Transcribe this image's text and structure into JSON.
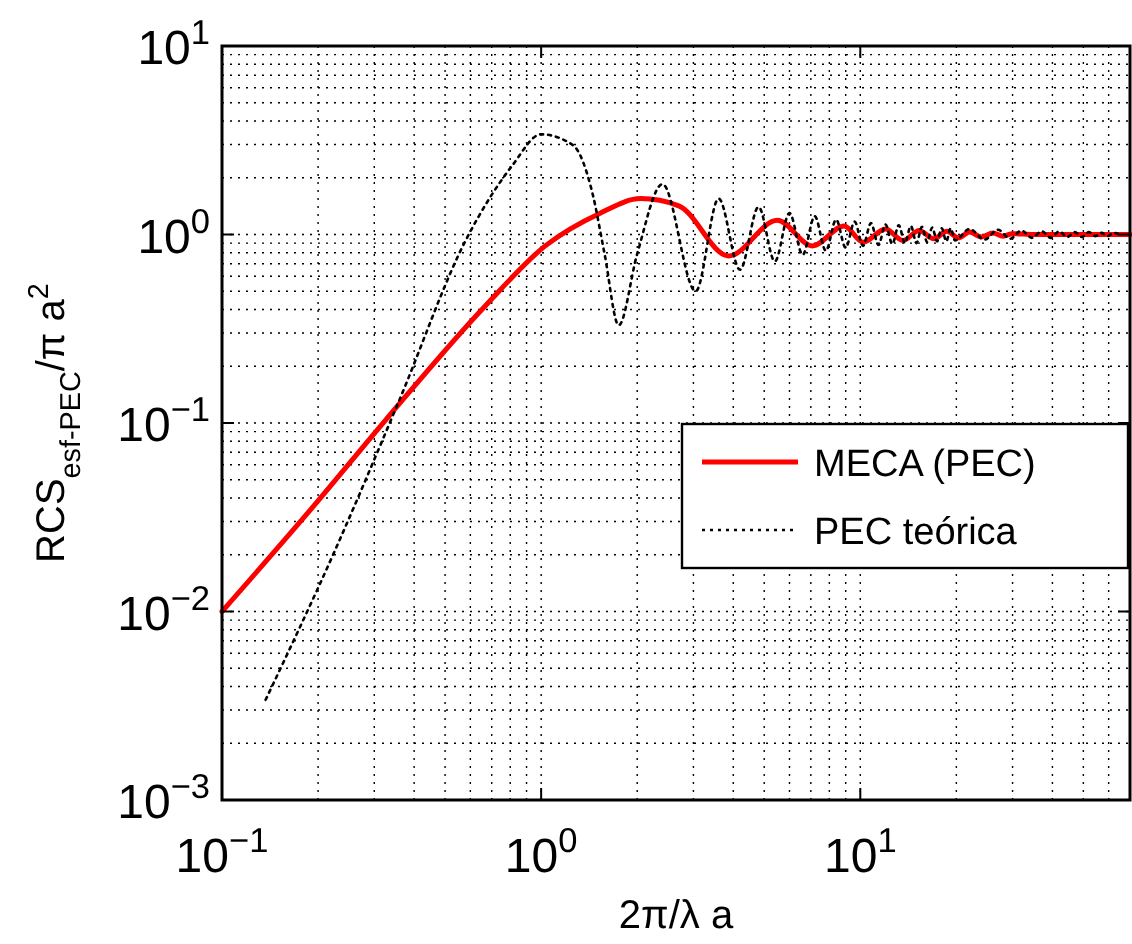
{
  "chart_data": {
    "type": "line",
    "xlabel": "2π/λ a",
    "ylabel": "RCS$_{esf-PEC}$/π a$^{2}$",
    "log": "xy",
    "grid": true,
    "legend": "right",
    "xlim": [
      0.1,
      70
    ],
    "ylim": [
      0.001,
      10
    ],
    "xticks": [
      {
        "value": 0.1,
        "label": "10$^{−1}$"
      },
      {
        "value": 1,
        "label": "10$^{0}$"
      },
      {
        "value": 10,
        "label": "10$^{1}$"
      }
    ],
    "yticks": [
      {
        "value": 0.001,
        "label": "10$^{−3}$"
      },
      {
        "value": 0.01,
        "label": "10$^{−2}$"
      },
      {
        "value": 0.1,
        "label": "10$^{−1}$"
      },
      {
        "value": 1,
        "label": "10$^{0}$"
      },
      {
        "value": 10,
        "label": "10$^{1}$"
      }
    ],
    "series": [
      {
        "name": "MECA (PEC)",
        "color": "#ff0000",
        "line_style": "solid",
        "x": [
          0.1,
          0.193,
          0.326,
          0.668,
          1.03,
          1.52,
          2.05,
          2.7,
          3.87,
          5.5,
          7.08,
          8.9,
          10.2,
          12,
          13.6,
          15.3,
          17,
          18.7,
          20.3,
          22,
          24,
          26,
          28,
          30,
          35,
          45,
          70
        ],
        "values": [
          0.01,
          0.036,
          0.104,
          0.418,
          0.87,
          1.29,
          1.55,
          1.42,
          0.77,
          1.19,
          0.87,
          1.11,
          0.91,
          1.07,
          0.93,
          1.05,
          0.95,
          1.04,
          0.96,
          1.03,
          0.97,
          1.02,
          0.98,
          1.01,
          1.0,
          1.0,
          1.0
        ]
      },
      {
        "name": "PEC teórica",
        "color": "#000000",
        "line_style": "dotted",
        "x": [
          0.137,
          0.224,
          0.36,
          0.58,
          0.81,
          1.0,
          1.26,
          1.45,
          1.58,
          1.75,
          2.0,
          2.4,
          3.05,
          3.6,
          4.2,
          4.8,
          5.4,
          6.0,
          6.6,
          7.2,
          7.8,
          8.4,
          9.0,
          9.6,
          10.2,
          10.8,
          11.4,
          12.0,
          12.6,
          13.2,
          13.8,
          14.4,
          15.0,
          15.6,
          16.2,
          16.8,
          17.4,
          18.0,
          18.6,
          19.2,
          19.8,
          22,
          24.5,
          27,
          29.5,
          32,
          34.5,
          37,
          39.5,
          42,
          44.5,
          47,
          49.5,
          52,
          54.5,
          57,
          59.5,
          62,
          65
        ],
        "values": [
          0.0034,
          0.0204,
          0.133,
          0.93,
          2.31,
          3.4,
          2.97,
          1.64,
          0.79,
          0.33,
          0.79,
          1.85,
          0.5,
          1.55,
          0.65,
          1.4,
          0.72,
          1.3,
          0.78,
          1.25,
          0.82,
          1.2,
          0.85,
          1.17,
          0.87,
          1.15,
          0.88,
          1.13,
          0.89,
          1.12,
          0.9,
          1.11,
          0.9,
          1.1,
          0.91,
          1.09,
          0.92,
          1.08,
          0.92,
          1.08,
          0.93,
          1.07,
          0.94,
          1.06,
          0.95,
          1.05,
          0.96,
          1.04,
          0.96,
          1.04,
          0.97,
          1.03,
          0.97,
          1.03,
          0.98,
          1.02,
          0.98,
          1.02,
          1.0
        ]
      }
    ]
  }
}
